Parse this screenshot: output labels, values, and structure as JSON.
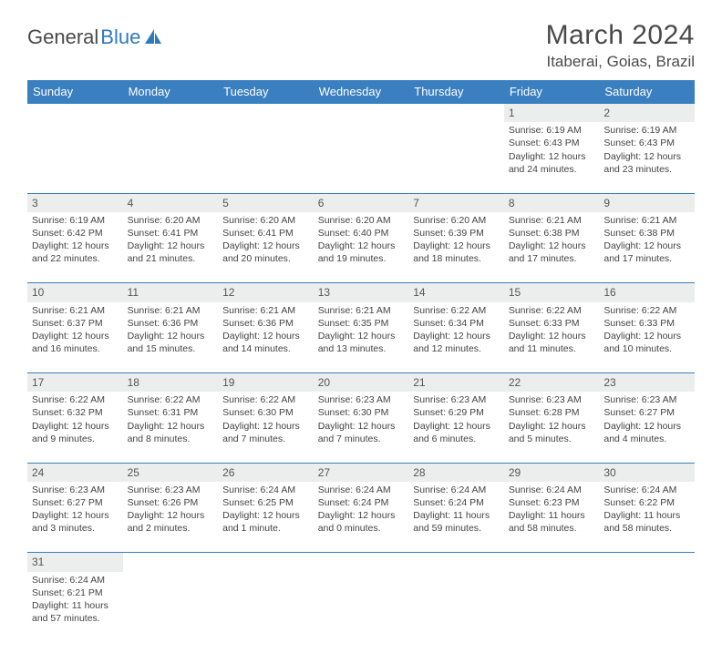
{
  "logo": {
    "text1": "General",
    "text2": "Blue"
  },
  "title": "March 2024",
  "location": "Itaberai, Goias, Brazil",
  "colors": {
    "header_bg": "#3a7fbf",
    "header_text": "#ffffff",
    "daynum_bg": "#eceded",
    "page_bg": "#ffffff",
    "text": "#444444",
    "logo_blue": "#2f7abf"
  },
  "weekdays": [
    "Sunday",
    "Monday",
    "Tuesday",
    "Wednesday",
    "Thursday",
    "Friday",
    "Saturday"
  ],
  "weeks": [
    {
      "nums": [
        "",
        "",
        "",
        "",
        "",
        "1",
        "2"
      ],
      "cells": [
        [],
        [],
        [],
        [],
        [],
        [
          "Sunrise: 6:19 AM",
          "Sunset: 6:43 PM",
          "Daylight: 12 hours",
          "and 24 minutes."
        ],
        [
          "Sunrise: 6:19 AM",
          "Sunset: 6:43 PM",
          "Daylight: 12 hours",
          "and 23 minutes."
        ]
      ]
    },
    {
      "nums": [
        "3",
        "4",
        "5",
        "6",
        "7",
        "8",
        "9"
      ],
      "cells": [
        [
          "Sunrise: 6:19 AM",
          "Sunset: 6:42 PM",
          "Daylight: 12 hours",
          "and 22 minutes."
        ],
        [
          "Sunrise: 6:20 AM",
          "Sunset: 6:41 PM",
          "Daylight: 12 hours",
          "and 21 minutes."
        ],
        [
          "Sunrise: 6:20 AM",
          "Sunset: 6:41 PM",
          "Daylight: 12 hours",
          "and 20 minutes."
        ],
        [
          "Sunrise: 6:20 AM",
          "Sunset: 6:40 PM",
          "Daylight: 12 hours",
          "and 19 minutes."
        ],
        [
          "Sunrise: 6:20 AM",
          "Sunset: 6:39 PM",
          "Daylight: 12 hours",
          "and 18 minutes."
        ],
        [
          "Sunrise: 6:21 AM",
          "Sunset: 6:38 PM",
          "Daylight: 12 hours",
          "and 17 minutes."
        ],
        [
          "Sunrise: 6:21 AM",
          "Sunset: 6:38 PM",
          "Daylight: 12 hours",
          "and 17 minutes."
        ]
      ]
    },
    {
      "nums": [
        "10",
        "11",
        "12",
        "13",
        "14",
        "15",
        "16"
      ],
      "cells": [
        [
          "Sunrise: 6:21 AM",
          "Sunset: 6:37 PM",
          "Daylight: 12 hours",
          "and 16 minutes."
        ],
        [
          "Sunrise: 6:21 AM",
          "Sunset: 6:36 PM",
          "Daylight: 12 hours",
          "and 15 minutes."
        ],
        [
          "Sunrise: 6:21 AM",
          "Sunset: 6:36 PM",
          "Daylight: 12 hours",
          "and 14 minutes."
        ],
        [
          "Sunrise: 6:21 AM",
          "Sunset: 6:35 PM",
          "Daylight: 12 hours",
          "and 13 minutes."
        ],
        [
          "Sunrise: 6:22 AM",
          "Sunset: 6:34 PM",
          "Daylight: 12 hours",
          "and 12 minutes."
        ],
        [
          "Sunrise: 6:22 AM",
          "Sunset: 6:33 PM",
          "Daylight: 12 hours",
          "and 11 minutes."
        ],
        [
          "Sunrise: 6:22 AM",
          "Sunset: 6:33 PM",
          "Daylight: 12 hours",
          "and 10 minutes."
        ]
      ]
    },
    {
      "nums": [
        "17",
        "18",
        "19",
        "20",
        "21",
        "22",
        "23"
      ],
      "cells": [
        [
          "Sunrise: 6:22 AM",
          "Sunset: 6:32 PM",
          "Daylight: 12 hours",
          "and 9 minutes."
        ],
        [
          "Sunrise: 6:22 AM",
          "Sunset: 6:31 PM",
          "Daylight: 12 hours",
          "and 8 minutes."
        ],
        [
          "Sunrise: 6:22 AM",
          "Sunset: 6:30 PM",
          "Daylight: 12 hours",
          "and 7 minutes."
        ],
        [
          "Sunrise: 6:23 AM",
          "Sunset: 6:30 PM",
          "Daylight: 12 hours",
          "and 7 minutes."
        ],
        [
          "Sunrise: 6:23 AM",
          "Sunset: 6:29 PM",
          "Daylight: 12 hours",
          "and 6 minutes."
        ],
        [
          "Sunrise: 6:23 AM",
          "Sunset: 6:28 PM",
          "Daylight: 12 hours",
          "and 5 minutes."
        ],
        [
          "Sunrise: 6:23 AM",
          "Sunset: 6:27 PM",
          "Daylight: 12 hours",
          "and 4 minutes."
        ]
      ]
    },
    {
      "nums": [
        "24",
        "25",
        "26",
        "27",
        "28",
        "29",
        "30"
      ],
      "cells": [
        [
          "Sunrise: 6:23 AM",
          "Sunset: 6:27 PM",
          "Daylight: 12 hours",
          "and 3 minutes."
        ],
        [
          "Sunrise: 6:23 AM",
          "Sunset: 6:26 PM",
          "Daylight: 12 hours",
          "and 2 minutes."
        ],
        [
          "Sunrise: 6:24 AM",
          "Sunset: 6:25 PM",
          "Daylight: 12 hours",
          "and 1 minute."
        ],
        [
          "Sunrise: 6:24 AM",
          "Sunset: 6:24 PM",
          "Daylight: 12 hours",
          "and 0 minutes."
        ],
        [
          "Sunrise: 6:24 AM",
          "Sunset: 6:24 PM",
          "Daylight: 11 hours",
          "and 59 minutes."
        ],
        [
          "Sunrise: 6:24 AM",
          "Sunset: 6:23 PM",
          "Daylight: 11 hours",
          "and 58 minutes."
        ],
        [
          "Sunrise: 6:24 AM",
          "Sunset: 6:22 PM",
          "Daylight: 11 hours",
          "and 58 minutes."
        ]
      ]
    },
    {
      "nums": [
        "31",
        "",
        "",
        "",
        "",
        "",
        ""
      ],
      "cells": [
        [
          "Sunrise: 6:24 AM",
          "Sunset: 6:21 PM",
          "Daylight: 11 hours",
          "and 57 minutes."
        ],
        [],
        [],
        [],
        [],
        [],
        []
      ]
    }
  ]
}
